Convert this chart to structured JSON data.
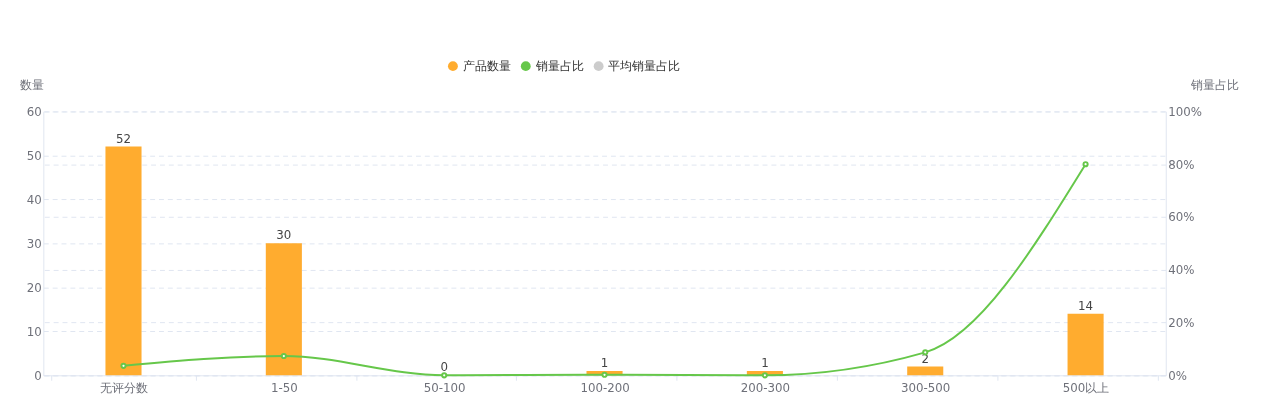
{
  "chart_data": {
    "type": "bar",
    "categories": [
      "无评分数",
      "1-50",
      "50-100",
      "100-200",
      "200-300",
      "300-500",
      "500以上"
    ],
    "series": [
      {
        "name": "产品数量",
        "color": "#ffac2f",
        "values": [
          52,
          30,
          0,
          1,
          1,
          2,
          14
        ]
      },
      {
        "name": "销量占比",
        "color": "#66c74a",
        "type": "line",
        "axis": "y2",
        "values": [
          3.6,
          7.3,
          0,
          0.2,
          0,
          8.7,
          80
        ]
      },
      {
        "name": "平均销量占比",
        "color": "#cccccc",
        "type": "line",
        "axis": "y2",
        "values": [
          null,
          null,
          null,
          null,
          null,
          null,
          null
        ]
      }
    ],
    "ylabel": "数量",
    "y2label": "销量占比",
    "ylim": [
      0,
      60
    ],
    "yticks": [
      0,
      10,
      20,
      30,
      40,
      50,
      60
    ],
    "y2lim": [
      0,
      100
    ],
    "y2ticks": [
      {
        "value": 0,
        "label": "0%"
      },
      {
        "value": 20,
        "label": "20%"
      },
      {
        "value": 40,
        "label": "40%"
      },
      {
        "value": 60,
        "label": "60%"
      },
      {
        "value": 80,
        "label": "80%"
      },
      {
        "value": 100,
        "label": "100%"
      }
    ],
    "value_labels": [
      "52",
      "30",
      "0",
      "1",
      "1",
      "2",
      "14"
    ],
    "grid": true,
    "legend": "top",
    "marker": "circle",
    "line_style": "solid"
  }
}
